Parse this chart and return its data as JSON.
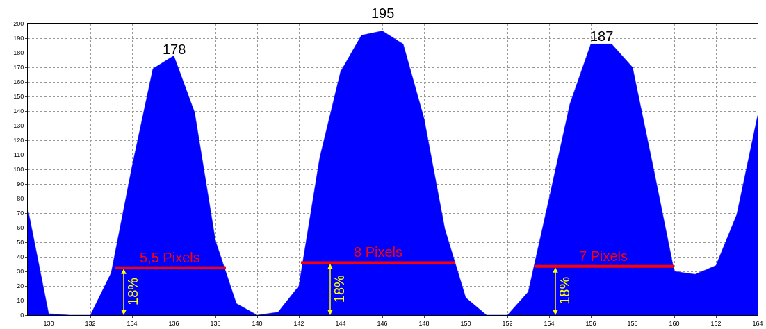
{
  "chart_data": {
    "type": "area",
    "x": [
      129,
      130,
      131,
      132,
      133,
      134,
      135,
      136,
      137,
      138,
      139,
      140,
      141,
      142,
      143,
      144,
      145,
      146,
      147,
      148,
      149,
      150,
      151,
      152,
      153,
      154,
      155,
      156,
      157,
      158,
      159,
      160,
      161,
      162,
      163,
      164
    ],
    "series": [
      {
        "color": "#0000ff",
        "values": [
          73,
          1,
          0,
          0,
          29,
          102,
          169,
          178,
          139,
          51,
          8,
          0,
          2,
          20,
          108,
          167,
          192,
          195,
          186,
          135,
          59,
          12,
          0,
          0,
          16,
          80,
          145,
          186,
          186,
          170,
          101,
          30,
          28,
          34,
          69,
          137
        ]
      },
      {
        "type": "line",
        "color": "#ff0000",
        "x": [
          133.2,
          138.5
        ],
        "values": [
          32.5,
          32.5
        ]
      },
      {
        "type": "line",
        "color": "#ff0000",
        "x": [
          142.1,
          149.5
        ],
        "values": [
          36,
          36
        ]
      },
      {
        "type": "line",
        "color": "#ff0000",
        "x": [
          153.3,
          160
        ],
        "values": [
          33.5,
          33.5
        ]
      }
    ],
    "xlim": [
      129,
      164
    ],
    "xticks": [
      130,
      132,
      134,
      136,
      138,
      140,
      142,
      144,
      146,
      148,
      150,
      152,
      154,
      156,
      158,
      160,
      162,
      164
    ],
    "ylim": [
      0,
      200
    ],
    "yticks": [
      0,
      10,
      20,
      30,
      40,
      50,
      60,
      70,
      80,
      90,
      100,
      110,
      120,
      130,
      140,
      150,
      160,
      170,
      180,
      190,
      200
    ],
    "grid": true,
    "annotations": [
      {
        "text": "178",
        "x": 136,
        "y": 178
      },
      {
        "text": "195",
        "x": 146,
        "y": 195
      },
      {
        "text": "187",
        "x": 156.5,
        "y": 187
      },
      {
        "text": "5,5 Pixels",
        "x": 135.8,
        "y": 32.5
      },
      {
        "text": "8 Pixels",
        "x": 145.8,
        "y": 36
      },
      {
        "text": "7 Pixels",
        "x": 156.6,
        "y": 33.5
      },
      {
        "text": "18%",
        "x": 133.6,
        "y": 32.5
      },
      {
        "text": "18%",
        "x": 143.5,
        "y": 36
      },
      {
        "text": "18%",
        "x": 154.3,
        "y": 33.5
      }
    ]
  }
}
